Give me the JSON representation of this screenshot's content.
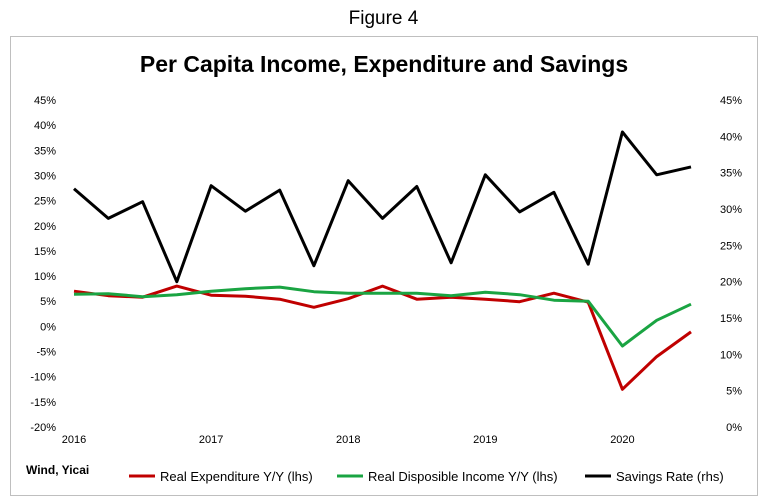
{
  "figure_label": "Figure 4",
  "source_note": "Wind, Yicai",
  "chart_data": {
    "type": "line",
    "title": "Per Capita Income, Expenditure and Savings",
    "x_tick_labels": [
      "2016",
      "2017",
      "2018",
      "2019",
      "2020"
    ],
    "x": [
      2016.0,
      2016.25,
      2016.5,
      2016.75,
      2017.0,
      2017.25,
      2017.5,
      2017.75,
      2018.0,
      2018.25,
      2018.5,
      2018.75,
      2019.0,
      2019.25,
      2019.5,
      2019.75,
      2020.0,
      2020.25,
      2020.5
    ],
    "xlim": [
      2016.0,
      2020.5
    ],
    "y_left": {
      "lim": [
        -20,
        45
      ],
      "step": 5,
      "tick_labels": [
        "-20%",
        "-15%",
        "-10%",
        "-5%",
        "0%",
        "5%",
        "10%",
        "15%",
        "20%",
        "25%",
        "30%",
        "35%",
        "40%",
        "45%"
      ]
    },
    "y_right": {
      "lim": [
        0,
        45
      ],
      "step": 5,
      "tick_labels": [
        "0%",
        "5%",
        "10%",
        "15%",
        "20%",
        "25%",
        "30%",
        "35%",
        "40%",
        "45%"
      ]
    },
    "grid": false,
    "legend_position": "bottom",
    "series": [
      {
        "name": "Real Expenditure Y/Y (lhs)",
        "axis": "left",
        "color": "#c00000",
        "values": [
          7.0,
          6.1,
          5.8,
          8.0,
          6.2,
          6.0,
          5.4,
          3.8,
          5.5,
          8.0,
          5.4,
          5.8,
          5.4,
          4.9,
          6.6,
          4.8,
          -12.5,
          -6.0,
          -1.1
        ]
      },
      {
        "name": "Real Disposible Income Y/Y (lhs)",
        "axis": "left",
        "color": "#1aa442",
        "values": [
          6.4,
          6.5,
          5.9,
          6.3,
          7.0,
          7.5,
          7.8,
          6.9,
          6.6,
          6.6,
          6.6,
          6.1,
          6.8,
          6.3,
          5.2,
          5.0,
          -3.9,
          1.2,
          4.4
        ]
      },
      {
        "name": "Savings Rate (rhs)",
        "axis": "right",
        "color": "#000000",
        "values": [
          32.8,
          28.7,
          31.0,
          20.0,
          33.2,
          29.7,
          32.6,
          22.2,
          33.9,
          28.7,
          33.1,
          22.6,
          34.7,
          29.6,
          32.3,
          22.4,
          40.6,
          34.7,
          35.8
        ]
      }
    ]
  }
}
